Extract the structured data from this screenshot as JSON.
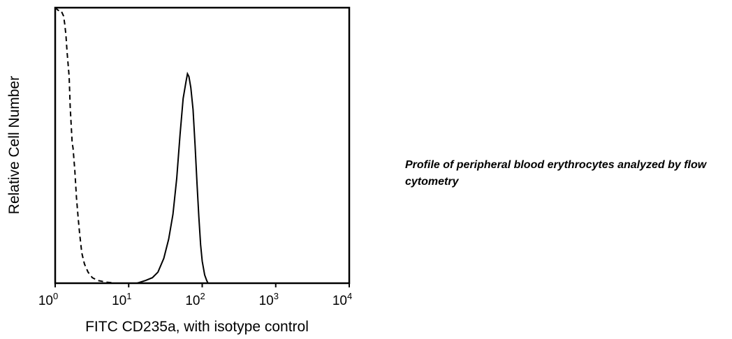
{
  "caption": "Profile of peripheral blood erythrocytes analyzed by flow cytometry",
  "chart_data": {
    "type": "line",
    "xlabel": "FITC CD235a, with isotype control",
    "ylabel": "Relative Cell Number",
    "x_scale": "log",
    "xlim": [
      1,
      10000
    ],
    "ylim": [
      0,
      100
    ],
    "x_ticks": [
      {
        "base": "10",
        "exp": "0",
        "value": 1
      },
      {
        "base": "10",
        "exp": "1",
        "value": 10
      },
      {
        "base": "10",
        "exp": "2",
        "value": 100
      },
      {
        "base": "10",
        "exp": "3",
        "value": 1000
      },
      {
        "base": "10",
        "exp": "4",
        "value": 10000
      }
    ],
    "y_ticks": [],
    "grid": false,
    "series": [
      {
        "style": "dashed",
        "color": "#000000",
        "x": [
          1.0,
          1.1,
          1.2,
          1.3,
          1.35,
          1.4,
          1.45,
          1.55,
          1.6,
          1.7,
          1.75,
          1.85,
          1.95,
          2.05,
          2.15,
          2.3,
          2.5,
          2.8,
          3.2,
          3.8,
          4.5,
          5.2,
          5.8,
          6.3
        ],
        "y": [
          100,
          99,
          99,
          97,
          94,
          90,
          84,
          75,
          64,
          51,
          49,
          41,
          31,
          24,
          18,
          11,
          7,
          4,
          2,
          1,
          0.6,
          0.3,
          0.2,
          0
        ]
      },
      {
        "style": "solid",
        "color": "#000000",
        "x": [
          13,
          17,
          21,
          25,
          30,
          35,
          40,
          45,
          50,
          55,
          60,
          63,
          66,
          70,
          75,
          80,
          85,
          90,
          95,
          100,
          108,
          115,
          120
        ],
        "y": [
          0,
          1,
          2,
          4,
          9,
          16,
          25,
          38,
          54,
          67,
          73,
          76,
          75,
          71,
          63,
          50,
          36,
          24,
          14,
          8,
          3,
          1,
          0
        ]
      }
    ]
  }
}
